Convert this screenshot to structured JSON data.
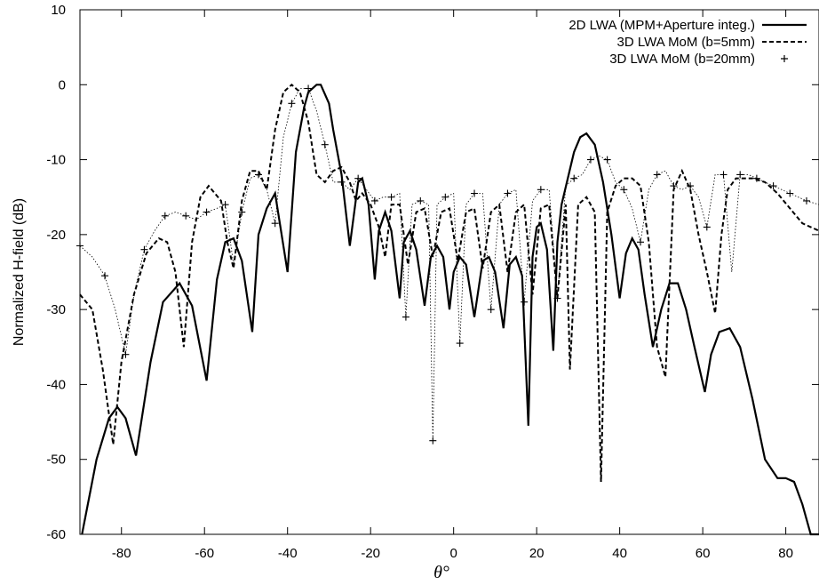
{
  "chart_data": {
    "type": "line",
    "title": "",
    "xlabel": "θ°",
    "ylabel": "Normalized H-field (dB)",
    "xlim": [
      -90,
      88
    ],
    "ylim": [
      -60,
      10
    ],
    "x_ticks": [
      -80,
      -60,
      -40,
      -20,
      0,
      20,
      40,
      60,
      80
    ],
    "y_ticks": [
      10,
      0,
      -10,
      -20,
      -30,
      -40,
      -50,
      -60
    ],
    "x_tick_labels": [
      "-80",
      "-60",
      "-40",
      "-20",
      "0",
      "20",
      "40",
      "60",
      "80"
    ],
    "y_tick_labels": [
      "10",
      "0",
      "-10",
      "-20",
      "-30",
      "-40",
      "-50",
      "-60"
    ],
    "grid": false,
    "legend_position": "top-right",
    "series": [
      {
        "name": "2D LWA (MPM+Aperture integ.)",
        "style": "solid",
        "x": [
          -89.5,
          -86,
          -83,
          -81,
          -79,
          -76.5,
          -73,
          -70,
          -66,
          -63,
          -59.5,
          -57,
          -55,
          -53,
          -51,
          -48.5,
          -47,
          -45,
          -43,
          -40,
          -38,
          -36,
          -35,
          -33,
          -32,
          -30,
          -29,
          -27,
          -25,
          -23,
          -22,
          -20.5,
          -19,
          -18,
          -16.5,
          -15,
          -13,
          -12,
          -10.5,
          -9,
          -7,
          -5.5,
          -4,
          -2.5,
          -1,
          0,
          1.5,
          3,
          5,
          7,
          8.5,
          10,
          12,
          13.5,
          15,
          16.5,
          18,
          19,
          20,
          21,
          22.5,
          24,
          25,
          26,
          27.5,
          29,
          30.5,
          32,
          34,
          36,
          38,
          40,
          41.5,
          43,
          44.5,
          46,
          48,
          50,
          52,
          54,
          56,
          58,
          60.5,
          62,
          64,
          66.5,
          69,
          72,
          75,
          78,
          80,
          82,
          84,
          86,
          88
        ],
        "y": [
          -60,
          -50,
          -44.5,
          -43,
          -44.5,
          -49.5,
          -37,
          -29,
          -26.5,
          -29.5,
          -39.5,
          -26,
          -21,
          -20.5,
          -23.5,
          -33,
          -20,
          -16.5,
          -14.5,
          -25,
          -9,
          -3,
          -1,
          0,
          0,
          -2.5,
          -6,
          -12,
          -21.5,
          -13,
          -12.5,
          -16,
          -26,
          -19.5,
          -17,
          -19.5,
          -28.5,
          -21,
          -19.5,
          -22,
          -29.5,
          -23,
          -21.5,
          -23,
          -30,
          -25,
          -23,
          -24,
          -31,
          -23.5,
          -23,
          -25,
          -32.5,
          -24,
          -23,
          -25.5,
          -45.5,
          -23,
          -19,
          -18.5,
          -22,
          -35.5,
          -21,
          -16,
          -12.5,
          -9,
          -7,
          -6.5,
          -8,
          -13,
          -20,
          -28.5,
          -22.5,
          -20.5,
          -22,
          -28,
          -35,
          -30,
          -26.5,
          -26.5,
          -30,
          -35,
          -41,
          -36,
          -33,
          -32.5,
          -35,
          -42,
          -50,
          -52.5,
          -52.5,
          -53,
          -56,
          -60,
          -62
        ]
      },
      {
        "name": "3D LWA MoM (b=5mm)",
        "style": "dashed",
        "x": [
          -90,
          -87,
          -84.5,
          -82,
          -80,
          -77,
          -74,
          -71,
          -69,
          -67,
          -65,
          -63,
          -61,
          -59,
          -56,
          -54.5,
          -53,
          -51,
          -49,
          -47,
          -45,
          -43,
          -41,
          -39,
          -37,
          -35,
          -33,
          -31,
          -29,
          -27,
          -25,
          -23.5,
          -22,
          -20,
          -18,
          -16.5,
          -15,
          -13,
          -11,
          -9,
          -7,
          -5,
          -3,
          -1,
          1,
          3,
          5,
          7,
          9,
          11,
          13,
          15,
          17,
          19,
          21,
          23,
          25,
          27,
          28,
          30,
          32,
          34,
          35.5,
          37,
          39,
          41,
          43,
          45,
          47,
          49,
          51,
          53,
          55,
          57,
          59,
          61,
          63,
          64.5,
          66,
          68,
          70,
          72,
          75,
          78,
          81,
          84,
          88
        ],
        "y": [
          -28,
          -30,
          -38,
          -48,
          -37,
          -28,
          -22.5,
          -20.5,
          -21,
          -25,
          -35,
          -21,
          -15,
          -13.5,
          -15.5,
          -21,
          -24.5,
          -15.5,
          -11.5,
          -11.5,
          -14,
          -6,
          -1,
          0,
          -1,
          -5,
          -12,
          -13,
          -11.5,
          -11,
          -13,
          -15.5,
          -14.5,
          -16,
          -19,
          -23,
          -16,
          -16,
          -24,
          -17,
          -16.5,
          -23,
          -17,
          -16.5,
          -23.5,
          -17,
          -16.5,
          -24.5,
          -17,
          -16,
          -25,
          -17,
          -16,
          -28,
          -16.5,
          -16,
          -28.5,
          -16,
          -38,
          -16,
          -15,
          -17,
          -53,
          -17,
          -13.5,
          -12.5,
          -12.5,
          -13.5,
          -21,
          -35,
          -39,
          -14,
          -11.5,
          -14,
          -20,
          -25,
          -30.5,
          -20,
          -14,
          -12.5,
          -12.5,
          -12.5,
          -13,
          -14.5,
          -16.5,
          -18.5,
          -19.5
        ]
      },
      {
        "name": "3D LWA MoM (b=20mm)",
        "style": "dotted+points",
        "x": [
          -90,
          -87,
          -84,
          -81.5,
          -79,
          -77,
          -74.5,
          -72,
          -69.5,
          -67,
          -64.5,
          -62,
          -59.5,
          -57,
          -55,
          -53,
          -51,
          -49,
          -47,
          -45,
          -43,
          -41,
          -39,
          -37,
          -35,
          -33,
          -31,
          -29,
          -27,
          -25,
          -23,
          -21,
          -19,
          -17,
          -15,
          -13,
          -11.5,
          -10,
          -8,
          -6,
          -5,
          -4,
          -2,
          0,
          1.5,
          3,
          5,
          7,
          9,
          11,
          13,
          15,
          17,
          19,
          21,
          23,
          25,
          27,
          29,
          31,
          33,
          35,
          37,
          39,
          41,
          43,
          45,
          47,
          49,
          51,
          53,
          55,
          57,
          59,
          61,
          63,
          65,
          67,
          69,
          71,
          73,
          75,
          77,
          79,
          81,
          83,
          85,
          88
        ],
        "y": [
          -21.5,
          -23,
          -25.5,
          -30,
          -36,
          -28,
          -22,
          -19.5,
          -17.5,
          -17,
          -17.5,
          -18,
          -17,
          -16.5,
          -16,
          -24,
          -17,
          -12.5,
          -12,
          -14,
          -18.5,
          -7,
          -2.5,
          -0.5,
          -0.5,
          -3.5,
          -8,
          -13,
          -13,
          -14,
          -12.5,
          -14,
          -15.5,
          -15,
          -15,
          -14.5,
          -31,
          -16,
          -15.5,
          -16,
          -47.5,
          -16,
          -15,
          -14.5,
          -34.5,
          -16,
          -14.5,
          -14.5,
          -30,
          -16,
          -14.5,
          -14,
          -29,
          -15.5,
          -14,
          -14,
          -28.5,
          -13.5,
          -12.5,
          -12,
          -10,
          -9.5,
          -10,
          -13,
          -14,
          -16.5,
          -21,
          -14,
          -12,
          -11.5,
          -13.5,
          -14,
          -13.5,
          -15,
          -19,
          -12,
          -12,
          -25,
          -12,
          -12,
          -12.5,
          -13,
          -13.5,
          -14,
          -14.5,
          -15,
          -15.5,
          -16
        ]
      }
    ]
  }
}
